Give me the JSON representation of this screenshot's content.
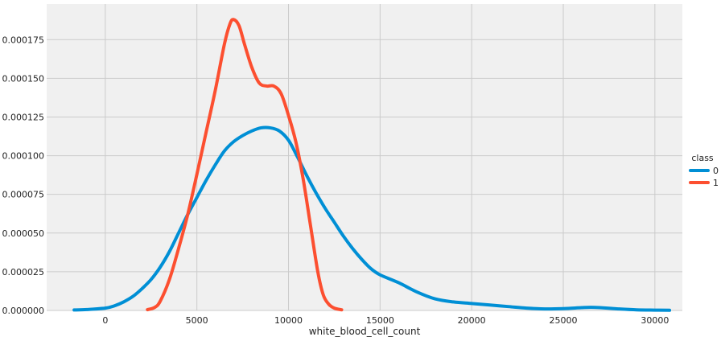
{
  "chart_data": {
    "type": "line",
    "subtype": "kde",
    "title": "",
    "xlabel": "white_blood_cell_count",
    "ylabel": "",
    "xlim": [
      -3200,
      31500
    ],
    "ylim": [
      0,
      0.000198
    ],
    "x_ticks": [
      0,
      5000,
      10000,
      15000,
      20000,
      25000,
      30000
    ],
    "x_tick_labels": [
      "0",
      "5000",
      "10000",
      "15000",
      "20000",
      "25000",
      "30000"
    ],
    "y_ticks": [
      0,
      2.5e-05,
      5e-05,
      7.5e-05,
      0.0001,
      0.000125,
      0.00015,
      0.000175
    ],
    "y_tick_labels": [
      "0.000000",
      "0.000025",
      "0.000050",
      "0.000075",
      "0.000100",
      "0.000125",
      "0.000150",
      "0.000175"
    ],
    "grid": true,
    "background": "#f0f0f0",
    "grid_color": "#cbcbcb",
    "legend": {
      "title": "class",
      "placement": "right"
    },
    "series": [
      {
        "name": "0",
        "color": "#008fd5",
        "points": [
          [
            -1700,
            3e-07
          ],
          [
            -1000,
            6e-07
          ],
          [
            0,
            1.5e-06
          ],
          [
            500,
            3e-06
          ],
          [
            1000,
            5.5e-06
          ],
          [
            1500,
            9e-06
          ],
          [
            2000,
            1.4e-05
          ],
          [
            2500,
            2e-05
          ],
          [
            3000,
            2.8e-05
          ],
          [
            3500,
            3.8e-05
          ],
          [
            4000,
            5e-05
          ],
          [
            4500,
            6.2e-05
          ],
          [
            5000,
            7.3e-05
          ],
          [
            5500,
            8.4e-05
          ],
          [
            6000,
            9.4e-05
          ],
          [
            6500,
            0.000103
          ],
          [
            7000,
            0.000109
          ],
          [
            7500,
            0.000113
          ],
          [
            8000,
            0.000116
          ],
          [
            8500,
            0.000118
          ],
          [
            9000,
            0.000118
          ],
          [
            9500,
            0.000116
          ],
          [
            10000,
            0.00011
          ],
          [
            10500,
            9.9e-05
          ],
          [
            11000,
            8.7e-05
          ],
          [
            11500,
            7.6e-05
          ],
          [
            12000,
            6.6e-05
          ],
          [
            12500,
            5.7e-05
          ],
          [
            13000,
            4.8e-05
          ],
          [
            13500,
            4e-05
          ],
          [
            14000,
            3.3e-05
          ],
          [
            14500,
            2.7e-05
          ],
          [
            15000,
            2.3e-05
          ],
          [
            16000,
            1.8e-05
          ],
          [
            17000,
            1.2e-05
          ],
          [
            18000,
            7.5e-06
          ],
          [
            19000,
            5.5e-06
          ],
          [
            20000,
            4.5e-06
          ],
          [
            21000,
            3.5e-06
          ],
          [
            22000,
            2.5e-06
          ],
          [
            23000,
            1.5e-06
          ],
          [
            24000,
            1e-06
          ],
          [
            25000,
            1.2e-06
          ],
          [
            26000,
            1.8e-06
          ],
          [
            26500,
            2e-06
          ],
          [
            27000,
            1.8e-06
          ],
          [
            28000,
            1e-06
          ],
          [
            29000,
            4e-07
          ],
          [
            30000,
            2e-07
          ],
          [
            30800,
            1e-07
          ]
        ]
      },
      {
        "name": "1",
        "color": "#fc4f30",
        "points": [
          [
            2300,
            5e-07
          ],
          [
            2700,
            2e-06
          ],
          [
            3000,
            6e-06
          ],
          [
            3500,
            2e-05
          ],
          [
            4000,
            4e-05
          ],
          [
            4500,
            6.2e-05
          ],
          [
            5000,
            8.8e-05
          ],
          [
            5500,
            0.000115
          ],
          [
            6000,
            0.000142
          ],
          [
            6500,
            0.000172
          ],
          [
            6800,
            0.000185
          ],
          [
            7000,
            0.000188
          ],
          [
            7300,
            0.000184
          ],
          [
            7600,
            0.000172
          ],
          [
            8000,
            0.000157
          ],
          [
            8400,
            0.000147
          ],
          [
            8800,
            0.000145
          ],
          [
            9200,
            0.000145
          ],
          [
            9600,
            0.00014
          ],
          [
            10000,
            0.000126
          ],
          [
            10400,
            0.000109
          ],
          [
            10800,
            8.5e-05
          ],
          [
            11200,
            5.5e-05
          ],
          [
            11600,
            2.5e-05
          ],
          [
            11900,
            1e-05
          ],
          [
            12200,
            4e-06
          ],
          [
            12500,
            1.5e-06
          ],
          [
            12900,
            4e-07
          ]
        ]
      }
    ]
  }
}
